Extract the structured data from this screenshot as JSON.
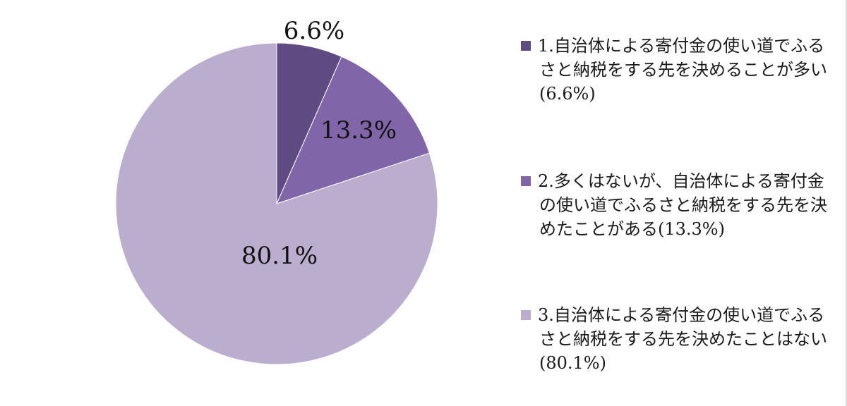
{
  "chart_data": {
    "type": "pie",
    "title": "",
    "slices": [
      {
        "label": "1.自治体による寄付金の使い道でふるさと納税をする先を決めることが多い(6.6%)",
        "value": 6.6,
        "value_label": "6.6%",
        "color": "#5f4b82"
      },
      {
        "label": "2.多くはないが、自治体による寄付金の使い道でふるさと納税をする先を決めたことがある(13.3%)",
        "value": 13.3,
        "value_label": "13.3%",
        "color": "#8066a8"
      },
      {
        "label": "3.自治体による寄付金の使い道でふるさと納税をする先を決めたことはない (80.1%)",
        "value": 80.1,
        "value_label": "80.1%",
        "color": "#bbadcd"
      }
    ],
    "start": "12 o'clock",
    "direction": "clockwise",
    "legend_position": "right"
  }
}
